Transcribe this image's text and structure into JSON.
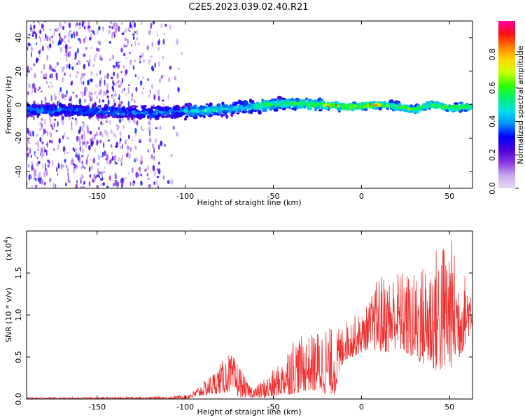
{
  "title": "C2E5.2023.039.02.40.R21",
  "chart_data": [
    {
      "type": "heatmap",
      "xlabel": "Height of straight line (km)",
      "ylabel": "Frequency (Hz)",
      "xlim": [
        -190,
        63
      ],
      "ylim": [
        -50,
        50
      ],
      "xticks": [
        -150,
        -100,
        -50,
        0,
        50
      ],
      "yticks": [
        -40,
        -20,
        0,
        20,
        40
      ],
      "colorbar": {
        "label": "Normalized spectral amplitude",
        "range": [
          0.0,
          1.0
        ],
        "ticks": [
          0.0,
          0.2,
          0.4,
          0.6,
          0.8
        ],
        "colors": [
          "#e8d8f4",
          "#c8a8ee",
          "#8a38e4",
          "#4b00d8",
          "#0000ff",
          "#0090ff",
          "#00e0e8",
          "#00f070",
          "#30ff00",
          "#c8ff00",
          "#ffd800",
          "#ff7a00",
          "#ff1010",
          "#ff00a0"
        ]
      },
      "ridge": {
        "x": [
          -190,
          -150,
          -120,
          -100,
          -80,
          -60,
          -40,
          -25,
          -10,
          0,
          10,
          20,
          30,
          40,
          50,
          63
        ],
        "y": [
          -3,
          -4,
          -5,
          -4,
          -3,
          -1,
          1,
          0,
          -1,
          -1,
          0,
          -1,
          -3,
          0,
          -2,
          -1
        ]
      },
      "noise_extent_x": [
        -190,
        -100
      ]
    },
    {
      "type": "line",
      "xlabel": "Height of straight line (km)",
      "ylabel": "SNR (10 * v/v)",
      "exponent_label": "(x10",
      "exponent_power": "4",
      "exponent_close": ")",
      "xlim": [
        -190,
        63
      ],
      "ylim": [
        0,
        2.0
      ],
      "xticks": [
        -150,
        -100,
        -50,
        0,
        50
      ],
      "yticks": [
        0.0,
        0.5,
        1.0,
        1.5
      ],
      "color": "#ee3030",
      "envelope": {
        "x": [
          -190,
          -150,
          -110,
          -100,
          -95,
          -85,
          -75,
          -70,
          -65,
          -60,
          -50,
          -45,
          -40,
          -30,
          -20,
          -15,
          -10,
          -5,
          0,
          5,
          10,
          15,
          20,
          30,
          40,
          45,
          50,
          55,
          63
        ],
        "low": [
          0.0,
          0.0,
          0.0,
          0.0,
          0.02,
          0.05,
          0.08,
          0.02,
          0.02,
          0.01,
          0.01,
          0.05,
          0.05,
          0.1,
          0.05,
          0.05,
          0.45,
          0.5,
          0.55,
          0.6,
          0.55,
          0.55,
          0.6,
          0.45,
          0.35,
          0.3,
          0.35,
          0.45,
          0.85
        ],
        "high": [
          0.02,
          0.02,
          0.03,
          0.05,
          0.1,
          0.3,
          0.55,
          0.45,
          0.2,
          0.15,
          0.35,
          0.45,
          0.75,
          0.75,
          0.9,
          0.8,
          0.9,
          1.0,
          1.0,
          1.2,
          1.5,
          1.45,
          1.55,
          1.5,
          1.75,
          1.9,
          2.0,
          1.6,
          1.4
        ]
      }
    }
  ]
}
